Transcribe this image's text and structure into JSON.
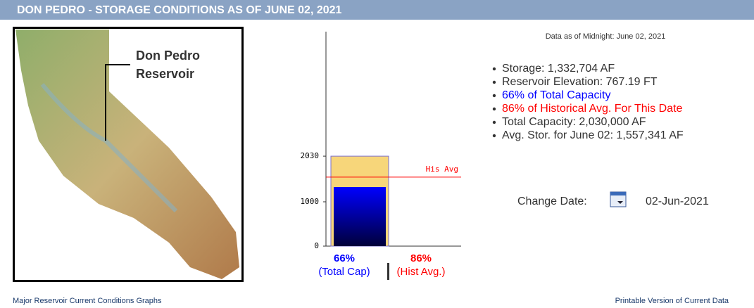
{
  "header": {
    "title": "DON PEDRO - STORAGE CONDITIONS AS OF JUNE 02, 2021"
  },
  "map": {
    "label_line1": "Don Pedro",
    "label_line2": "Reservoir"
  },
  "chart": {
    "type": "bar",
    "ylim": [
      0,
      4840
    ],
    "yticks": [
      0,
      1000,
      2030
    ],
    "capacity": 2030,
    "storage": 1332.704,
    "historical_avg": 1557.341,
    "capacity_color": "#f7d67a",
    "avg_color": "#ff0000",
    "avg_line_label": "His Avg",
    "total_cap_pct_label": "66%",
    "total_cap_caption": "(Total Cap)",
    "hist_avg_pct_label": "86%",
    "hist_avg_caption": "(Hist Avg.)"
  },
  "info": {
    "as_of": "Data as of Midnight: June 02, 2021",
    "items": [
      {
        "text": "Storage: 1,332,704 AF",
        "color": "#333333"
      },
      {
        "text": "Reservoir Elevation: 767.19 FT",
        "color": "#333333"
      },
      {
        "text": "66% of Total Capacity",
        "color": "#0000ff"
      },
      {
        "text": "86% of Historical Avg. For This Date",
        "color": "#ff0000"
      },
      {
        "text": "Total Capacity: 2,030,000 AF",
        "color": "#333333"
      },
      {
        "text": "Avg. Stor. for June 02: 1,557,341 AF",
        "color": "#333333"
      }
    ]
  },
  "change_date": {
    "label": "Change Date:",
    "value": "02-Jun-2021"
  },
  "footer": {
    "left": "Major Reservoir Current Conditions Graphs",
    "right": "Printable Version of Current Data"
  }
}
